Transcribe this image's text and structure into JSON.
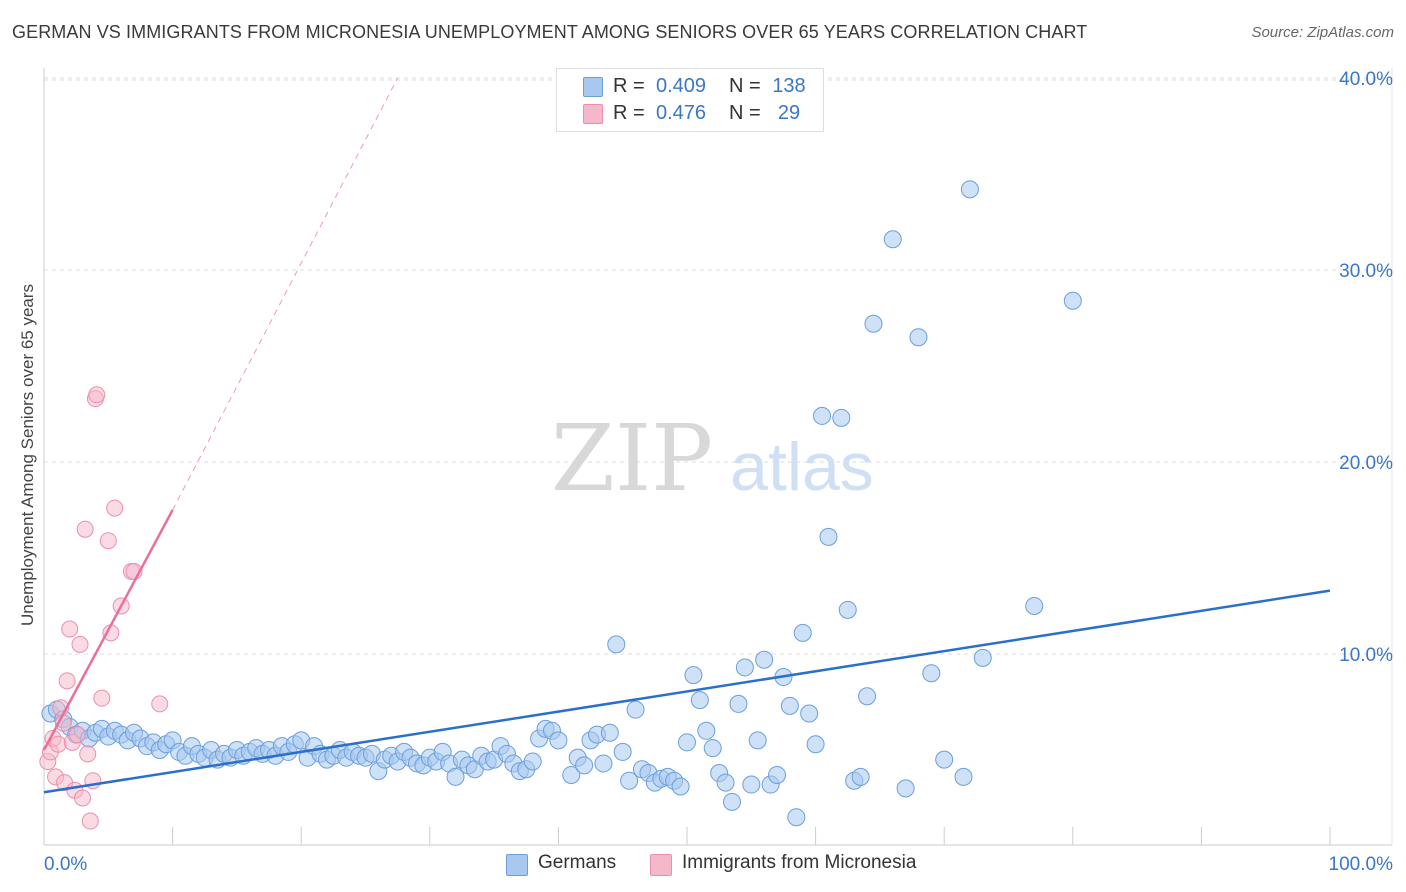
{
  "header": {
    "title": "GERMAN VS IMMIGRANTS FROM MICRONESIA UNEMPLOYMENT AMONG SENIORS OVER 65 YEARS CORRELATION CHART",
    "source": "Source: ZipAtlas.com"
  },
  "watermark": {
    "zip": "ZIP",
    "atlas": "atlas"
  },
  "legend": {
    "rows": [
      {
        "r_label": "R =",
        "r_value": "0.409",
        "n_label": "N =",
        "n_value": "138",
        "color": "#a8c8f0"
      },
      {
        "r_label": "R =",
        "r_value": "0.476",
        "n_label": "N =",
        "n_value": "29",
        "color": "#f5b8ca"
      }
    ]
  },
  "bottom_legend": {
    "germans": "Germans",
    "micronesia": "Immigrants from Micronesia"
  },
  "colors": {
    "blue_fill": "#a8c8f0",
    "blue_stroke": "#6b9fdc",
    "blue_line": "#2a6fce",
    "pink_fill": "#f5b8ca",
    "pink_stroke": "#ec8fab",
    "pink_line": "#e8709a",
    "axis_text": "#3b76c9",
    "grid": "#dddddd"
  },
  "chart_data": {
    "type": "scatter",
    "title": "GERMAN VS IMMIGRANTS FROM MICRONESIA UNEMPLOYMENT AMONG SENIORS OVER 65 YEARS CORRELATION CHART",
    "xlabel": "",
    "ylabel": "Unemployment Among Seniors over 65 years",
    "xlim": [
      0,
      100
    ],
    "ylim": [
      0,
      42
    ],
    "x_tick_labels": [
      "0.0%",
      "100.0%"
    ],
    "y_ticks": [
      10,
      20,
      30,
      40
    ],
    "y_tick_labels": [
      "10.0%",
      "20.0%",
      "30.0%",
      "40.0%"
    ],
    "grid": true,
    "legend_position": "top-center",
    "series": [
      {
        "name": "Germans",
        "R": 0.409,
        "N": 138,
        "trend": {
          "x": [
            0,
            100
          ],
          "y": [
            2.8,
            13.3
          ],
          "style": "solid"
        },
        "points": [
          [
            0.5,
            6.9
          ],
          [
            1.0,
            7.1
          ],
          [
            1.5,
            6.6
          ],
          [
            2.0,
            6.2
          ],
          [
            2.5,
            5.8
          ],
          [
            3.0,
            6.0
          ],
          [
            3.5,
            5.6
          ],
          [
            4.0,
            5.9
          ],
          [
            4.5,
            6.1
          ],
          [
            5.0,
            5.7
          ],
          [
            5.5,
            6.0
          ],
          [
            6.0,
            5.8
          ],
          [
            6.5,
            5.5
          ],
          [
            7.0,
            5.9
          ],
          [
            7.5,
            5.6
          ],
          [
            8.0,
            5.2
          ],
          [
            8.5,
            5.4
          ],
          [
            9.0,
            5.0
          ],
          [
            9.5,
            5.3
          ],
          [
            10.0,
            5.5
          ],
          [
            10.5,
            4.9
          ],
          [
            11.0,
            4.7
          ],
          [
            11.5,
            5.2
          ],
          [
            12.0,
            4.8
          ],
          [
            12.5,
            4.6
          ],
          [
            13.0,
            5.0
          ],
          [
            13.5,
            4.5
          ],
          [
            14.0,
            4.8
          ],
          [
            14.5,
            4.6
          ],
          [
            15.0,
            5.0
          ],
          [
            15.5,
            4.7
          ],
          [
            16.0,
            4.9
          ],
          [
            16.5,
            5.1
          ],
          [
            17.0,
            4.8
          ],
          [
            17.5,
            5.0
          ],
          [
            18.0,
            4.7
          ],
          [
            18.5,
            5.2
          ],
          [
            19.0,
            4.9
          ],
          [
            19.5,
            5.3
          ],
          [
            20.0,
            5.5
          ],
          [
            20.5,
            4.6
          ],
          [
            21.0,
            5.2
          ],
          [
            21.5,
            4.8
          ],
          [
            22.0,
            4.5
          ],
          [
            22.5,
            4.7
          ],
          [
            23.0,
            5.0
          ],
          [
            23.5,
            4.6
          ],
          [
            24.0,
            4.9
          ],
          [
            24.5,
            4.7
          ],
          [
            25.0,
            4.6
          ],
          [
            25.5,
            4.8
          ],
          [
            26.0,
            3.9
          ],
          [
            26.5,
            4.5
          ],
          [
            27.0,
            4.7
          ],
          [
            27.5,
            4.4
          ],
          [
            28.0,
            4.9
          ],
          [
            28.5,
            4.6
          ],
          [
            29.0,
            4.3
          ],
          [
            29.5,
            4.2
          ],
          [
            30.0,
            4.6
          ],
          [
            30.5,
            4.4
          ],
          [
            31.0,
            4.9
          ],
          [
            31.5,
            4.3
          ],
          [
            32.0,
            3.6
          ],
          [
            32.5,
            4.5
          ],
          [
            33.0,
            4.2
          ],
          [
            33.5,
            4.0
          ],
          [
            34.0,
            4.7
          ],
          [
            34.5,
            4.4
          ],
          [
            35.0,
            4.5
          ],
          [
            35.5,
            5.2
          ],
          [
            36.0,
            4.8
          ],
          [
            36.5,
            4.3
          ],
          [
            37.0,
            3.9
          ],
          [
            37.5,
            4.0
          ],
          [
            38.0,
            4.4
          ],
          [
            38.5,
            5.6
          ],
          [
            39.0,
            6.1
          ],
          [
            39.5,
            6.0
          ],
          [
            40.0,
            5.5
          ],
          [
            41.0,
            3.7
          ],
          [
            41.5,
            4.6
          ],
          [
            42.0,
            4.2
          ],
          [
            42.5,
            5.5
          ],
          [
            43.0,
            5.8
          ],
          [
            43.5,
            4.3
          ],
          [
            44.0,
            5.9
          ],
          [
            44.5,
            10.5
          ],
          [
            45.0,
            4.9
          ],
          [
            45.5,
            3.4
          ],
          [
            46.0,
            7.1
          ],
          [
            46.5,
            4.0
          ],
          [
            47.0,
            3.8
          ],
          [
            47.5,
            3.3
          ],
          [
            48.0,
            3.5
          ],
          [
            48.5,
            3.6
          ],
          [
            49.0,
            3.4
          ],
          [
            49.5,
            3.1
          ],
          [
            50.0,
            5.4
          ],
          [
            50.5,
            8.9
          ],
          [
            51.0,
            7.6
          ],
          [
            51.5,
            6.0
          ],
          [
            52.0,
            5.1
          ],
          [
            52.5,
            3.8
          ],
          [
            53.0,
            3.3
          ],
          [
            53.5,
            2.3
          ],
          [
            54.0,
            7.4
          ],
          [
            54.5,
            9.3
          ],
          [
            55.0,
            3.2
          ],
          [
            55.5,
            5.5
          ],
          [
            56.0,
            9.7
          ],
          [
            56.5,
            3.2
          ],
          [
            57.0,
            3.7
          ],
          [
            57.5,
            8.8
          ],
          [
            58.0,
            7.3
          ],
          [
            58.5,
            1.5
          ],
          [
            59.0,
            11.1
          ],
          [
            59.5,
            6.9
          ],
          [
            60.0,
            5.3
          ],
          [
            60.5,
            22.4
          ],
          [
            61.0,
            16.1
          ],
          [
            62.0,
            22.3
          ],
          [
            62.5,
            12.3
          ],
          [
            63.0,
            3.4
          ],
          [
            63.5,
            3.6
          ],
          [
            64.0,
            7.8
          ],
          [
            64.5,
            27.2
          ],
          [
            66.0,
            31.6
          ],
          [
            67.0,
            3.0
          ],
          [
            68.0,
            26.5
          ],
          [
            69.0,
            9.0
          ],
          [
            70.0,
            4.5
          ],
          [
            72.0,
            34.2
          ],
          [
            71.5,
            3.6
          ],
          [
            73.0,
            9.8
          ],
          [
            77.0,
            12.5
          ],
          [
            80.0,
            28.4
          ]
        ]
      },
      {
        "name": "Immigrants from Micronesia",
        "R": 0.476,
        "N": 29,
        "trend": {
          "x": [
            0,
            10
          ],
          "y": [
            5.0,
            17.5
          ],
          "extended_x": [
            10,
            27.5
          ],
          "extended_y": [
            17.5,
            40.0
          ],
          "style": "solid-then-dashed"
        },
        "points": [
          [
            0.3,
            4.4
          ],
          [
            0.5,
            4.9
          ],
          [
            0.7,
            5.6
          ],
          [
            0.9,
            3.6
          ],
          [
            1.1,
            5.3
          ],
          [
            1.3,
            7.2
          ],
          [
            1.5,
            6.4
          ],
          [
            1.6,
            3.3
          ],
          [
            1.8,
            8.6
          ],
          [
            2.0,
            11.3
          ],
          [
            2.2,
            5.4
          ],
          [
            2.4,
            2.9
          ],
          [
            2.6,
            5.8
          ],
          [
            2.8,
            10.5
          ],
          [
            3.0,
            2.5
          ],
          [
            3.2,
            16.5
          ],
          [
            3.4,
            4.8
          ],
          [
            3.6,
            1.3
          ],
          [
            3.8,
            3.4
          ],
          [
            4.0,
            23.3
          ],
          [
            4.1,
            23.5
          ],
          [
            4.5,
            7.7
          ],
          [
            5.0,
            15.9
          ],
          [
            5.2,
            11.1
          ],
          [
            5.5,
            17.6
          ],
          [
            6.0,
            12.5
          ],
          [
            6.8,
            14.3
          ],
          [
            7.0,
            14.3
          ],
          [
            9.0,
            7.4
          ]
        ]
      }
    ]
  }
}
